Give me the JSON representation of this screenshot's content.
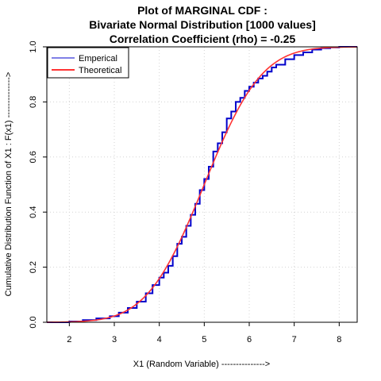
{
  "chart_data": {
    "type": "line",
    "title": "Plot of MARGINAL CDF :",
    "subtitle_1": "Bivariate Normal Distribution [1000 values]",
    "subtitle_2": "Correlation Coefficient (rho) =  -0.25",
    "xlabel": "X1 (Random Variable) --------------->",
    "ylabel": "Cumulative Distribution Function of X1 : F(x1) -------------->",
    "xlim": [
      1.5,
      8.4
    ],
    "ylim": [
      0.0,
      1.0
    ],
    "x_ticks": [
      "2",
      "3",
      "4",
      "5",
      "6",
      "7",
      "8"
    ],
    "y_ticks": [
      "0.0",
      "0.2",
      "0.4",
      "0.6",
      "0.8",
      "1.0"
    ],
    "grid": true,
    "legend_position": "top-left",
    "theoretical_mean": 5.0,
    "theoretical_sd": 1.0,
    "series": [
      {
        "name": "Emperical",
        "color": "#0000cc",
        "x": [
          1.5,
          2.0,
          2.3,
          2.6,
          2.9,
          3.1,
          3.3,
          3.5,
          3.7,
          3.85,
          4.0,
          4.1,
          4.2,
          4.3,
          4.4,
          4.5,
          4.6,
          4.7,
          4.8,
          4.9,
          5.0,
          5.1,
          5.2,
          5.3,
          5.4,
          5.5,
          5.6,
          5.7,
          5.8,
          5.9,
          6.0,
          6.1,
          6.2,
          6.3,
          6.4,
          6.5,
          6.6,
          6.8,
          7.0,
          7.2,
          7.4,
          7.6,
          7.8,
          8.0,
          8.4
        ],
        "y": [
          0.0,
          0.003,
          0.008,
          0.014,
          0.022,
          0.035,
          0.052,
          0.075,
          0.105,
          0.135,
          0.162,
          0.18,
          0.205,
          0.24,
          0.285,
          0.31,
          0.35,
          0.39,
          0.43,
          0.48,
          0.52,
          0.565,
          0.62,
          0.65,
          0.69,
          0.74,
          0.765,
          0.8,
          0.815,
          0.84,
          0.855,
          0.87,
          0.885,
          0.895,
          0.91,
          0.925,
          0.935,
          0.955,
          0.97,
          0.98,
          0.99,
          0.995,
          0.998,
          1.0,
          1.0
        ]
      },
      {
        "name": "Theoretical",
        "color": "#ff3333",
        "x": [],
        "y": []
      }
    ]
  }
}
